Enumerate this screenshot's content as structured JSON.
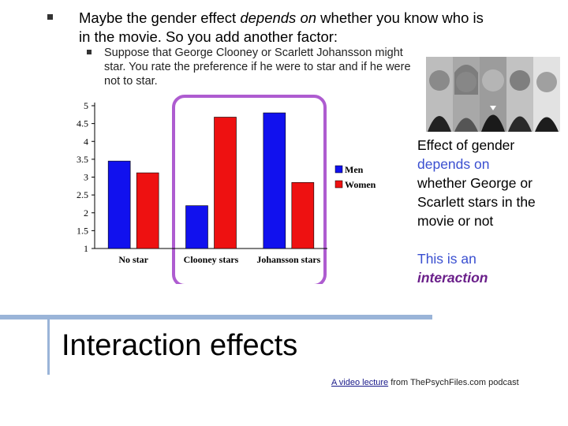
{
  "slide": {
    "bullet1": {
      "before": "Maybe the gender effect ",
      "emph": "depends on",
      "after": " whether you know who is in the movie.  So you add another factor:"
    },
    "bullet2": "Suppose that George Clooney or Scarlett Johansson might star. You rate the preference if he were to star and if he were not to star.",
    "effect": {
      "line1": "Effect of gender",
      "accent": "depends on",
      "line3": "whether George or Scarlett stars in the movie or not"
    },
    "interaction": {
      "prefix": "This is an",
      "word": "interaction"
    },
    "title": "Interaction effects",
    "footer": {
      "link": "A video lecture",
      "rest": " from ThePsychFiles.com podcast"
    }
  },
  "colors": {
    "men": "#1111ee",
    "women": "#ee1111",
    "highlight": "#a040c8",
    "divider": "#9ab4d8"
  },
  "chart_data": {
    "type": "bar",
    "categories": [
      "No star",
      "Clooney stars",
      "Johansson stars"
    ],
    "series": [
      {
        "name": "Men",
        "values": [
          3.45,
          2.2,
          4.8
        ]
      },
      {
        "name": "Women",
        "values": [
          3.12,
          4.68,
          2.85
        ]
      }
    ],
    "ylim": [
      1,
      5
    ],
    "yticks": [
      "1",
      "1.5",
      "2",
      "2.5",
      "3",
      "3.5",
      "4",
      "4.5",
      "5"
    ],
    "legend_position": "right",
    "highlighted_category": "Clooney stars"
  }
}
